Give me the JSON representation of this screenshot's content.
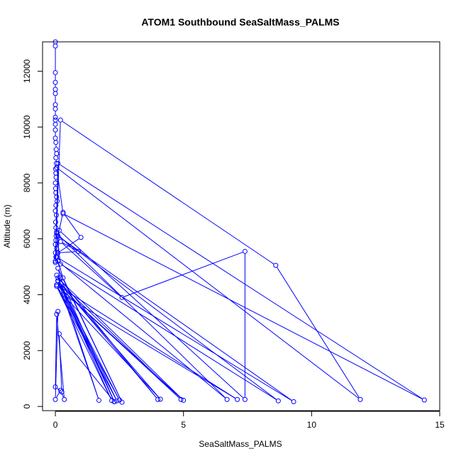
{
  "chart_data": {
    "type": "line",
    "title": "ATOM1 Southbound SeaSaltMass_PALMS",
    "xlabel": "SeaSaltMass_PALMS",
    "ylabel": "Altitude (m)",
    "xlim": [
      -0.5,
      15
    ],
    "ylim": [
      -150,
      13050
    ],
    "xticks": [
      0,
      5,
      10,
      15
    ],
    "yticks": [
      0,
      2000,
      4000,
      6000,
      8000,
      10000,
      12000
    ],
    "grid": false,
    "legend": "none",
    "colors": {
      "series": "#0000ff",
      "axis": "#000000",
      "background": "#ffffff"
    },
    "series": [
      {
        "marker": "open-circle",
        "x": [
          0.0,
          0.0,
          0.0,
          0.0,
          0.0,
          0.0,
          0.0,
          0.0,
          0.0,
          0.0,
          0.0,
          0.0,
          0.0,
          0.02,
          0.03,
          0.05,
          0.02,
          0.04,
          0.01,
          0.02,
          0.03,
          0.0,
          0.01,
          0.02,
          0.05,
          0.07,
          0.02,
          0.0,
          0.04,
          0.01,
          0.02,
          0.05,
          0.03,
          0.02,
          0.0,
          0.05,
          0.0,
          0.02,
          0.0,
          0.2,
          8.6,
          11.9,
          0.05,
          0.3,
          14.4,
          0.1,
          0.0,
          0.1,
          0.3,
          1.0,
          0.1,
          0.9,
          0.2,
          2.6,
          7.4,
          7.4,
          0.15,
          0.1,
          6.7,
          0.05,
          0.2,
          8.7,
          0.1,
          9.3,
          0.05,
          0.3,
          2.6,
          0.1,
          0.2,
          2.3,
          0.05,
          4.0,
          0.1,
          1.7,
          0.2,
          4.9,
          0.05,
          5.0,
          0.1,
          2.4,
          0.05,
          2.2,
          0.1,
          4.1,
          0.3,
          7.1,
          0.05,
          2.5,
          0.1,
          2.3,
          0.15,
          0.25,
          0.0,
          0.05,
          0.35,
          0.2,
          0.0,
          0.1
        ],
        "y": [
          13050,
          12900,
          11950,
          11600,
          11350,
          11200,
          10800,
          10650,
          10350,
          10250,
          10100,
          9900,
          9600,
          9450,
          9200,
          9050,
          8900,
          8700,
          8500,
          8350,
          8200,
          8000,
          7800,
          7650,
          7500,
          7350,
          7200,
          7000,
          6850,
          6600,
          6400,
          6250,
          6100,
          5950,
          5800,
          5650,
          5500,
          5350,
          5200,
          10250,
          5050,
          250,
          8550,
          6900,
          230,
          8700,
          5150,
          6100,
          6950,
          6050,
          5500,
          5550,
          5900,
          3900,
          5550,
          250,
          6300,
          5200,
          250,
          6200,
          5100,
          200,
          6100,
          170,
          5350,
          4600,
          150,
          4950,
          4600,
          170,
          4700,
          250,
          4500,
          220,
          4400,
          250,
          4350,
          220,
          4600,
          200,
          4300,
          210,
          4500,
          260,
          4000,
          250,
          4350,
          230,
          4500,
          170,
          2600,
          520,
          700,
          3300,
          250,
          580,
          250,
          3400
        ]
      }
    ]
  }
}
